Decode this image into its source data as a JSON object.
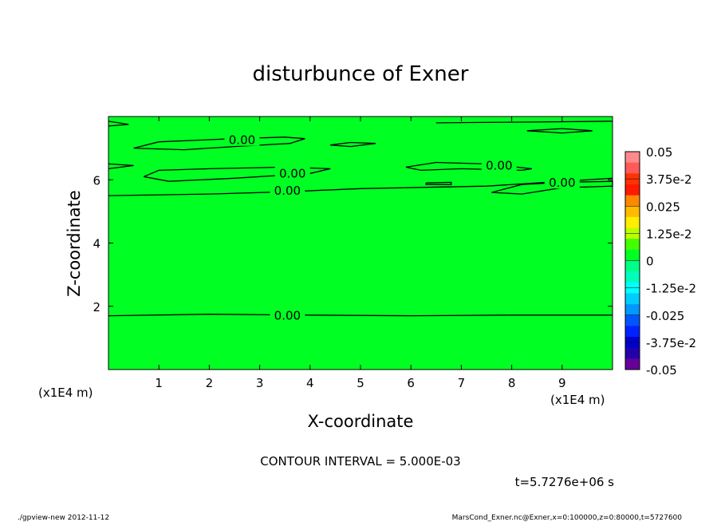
{
  "chart_data": {
    "type": "contour",
    "title": "disturbunce of Exner",
    "xlabel": "X-coordinate",
    "ylabel": "Z-coordinate",
    "x_units": "(x1E4 m)",
    "y_units": "(x1E4 m)",
    "xlim": [
      0,
      10
    ],
    "ylim": [
      0,
      8
    ],
    "x_ticks": [
      {
        "value": 1,
        "label": "1"
      },
      {
        "value": 2,
        "label": "2"
      },
      {
        "value": 3,
        "label": "3"
      },
      {
        "value": 4,
        "label": "4"
      },
      {
        "value": 5,
        "label": "5"
      },
      {
        "value": 6,
        "label": "6"
      },
      {
        "value": 7,
        "label": "7"
      },
      {
        "value": 8,
        "label": "8"
      },
      {
        "value": 9,
        "label": "9"
      }
    ],
    "y_ticks": [
      {
        "value": 2,
        "label": "2"
      },
      {
        "value": 4,
        "label": "4"
      },
      {
        "value": 6,
        "label": "6"
      }
    ],
    "fill_color": "#00ff22",
    "contour_color": "#000000",
    "contour_lines": [
      {
        "label": "0.00",
        "label_at": [
          3.55,
          1.7
        ],
        "points": [
          [
            0,
            1.7
          ],
          [
            2,
            1.75
          ],
          [
            4,
            1.72
          ],
          [
            6,
            1.7
          ],
          [
            8,
            1.72
          ],
          [
            10,
            1.72
          ]
        ]
      },
      {
        "label": "0.00",
        "label_at": [
          3.55,
          5.65
        ],
        "points": [
          [
            0,
            5.5
          ],
          [
            2,
            5.55
          ],
          [
            3.5,
            5.62
          ],
          [
            5,
            5.72
          ],
          [
            7.5,
            5.8
          ],
          [
            9,
            5.95
          ],
          [
            10,
            6.05
          ]
        ]
      },
      {
        "label": "0.00",
        "label_at": [
          3.65,
          6.2
        ],
        "points": [
          [
            0.7,
            6.1
          ],
          [
            1.2,
            5.95
          ],
          [
            2.5,
            6.05
          ],
          [
            4,
            6.2
          ],
          [
            4.4,
            6.35
          ],
          [
            3.5,
            6.4
          ],
          [
            2,
            6.35
          ],
          [
            1,
            6.3
          ],
          [
            0.7,
            6.1
          ]
        ]
      },
      {
        "label": "0.00",
        "label_at": [
          2.65,
          7.25
        ],
        "points": [
          [
            0.5,
            7.0
          ],
          [
            1,
            7.2
          ],
          [
            2.5,
            7.3
          ],
          [
            3.5,
            7.35
          ],
          [
            3.9,
            7.3
          ],
          [
            3.6,
            7.15
          ],
          [
            2.5,
            7.05
          ],
          [
            1.5,
            6.95
          ],
          [
            0.5,
            7.0
          ]
        ]
      },
      {
        "label": "0.00",
        "label_at": [
          7.75,
          6.45
        ],
        "points": [
          [
            5.9,
            6.4
          ],
          [
            6.5,
            6.55
          ],
          [
            7.5,
            6.5
          ],
          [
            8.4,
            6.35
          ],
          [
            8.2,
            6.3
          ],
          [
            7,
            6.35
          ],
          [
            6.2,
            6.3
          ],
          [
            5.9,
            6.4
          ]
        ]
      },
      {
        "label": "0.00",
        "label_at": [
          9.0,
          5.9
        ],
        "points": [
          [
            7.6,
            5.6
          ],
          [
            8.2,
            5.85
          ],
          [
            9,
            5.92
          ],
          [
            10,
            5.95
          ],
          [
            10,
            5.8
          ],
          [
            9,
            5.75
          ],
          [
            8.2,
            5.55
          ],
          [
            7.6,
            5.6
          ]
        ]
      },
      {
        "label": "",
        "label_at": null,
        "points": [
          [
            4.4,
            7.1
          ],
          [
            4.8,
            7.18
          ],
          [
            5.3,
            7.15
          ],
          [
            4.8,
            7.05
          ],
          [
            4.4,
            7.1
          ]
        ]
      },
      {
        "label": "",
        "label_at": null,
        "points": [
          [
            6.3,
            5.9
          ],
          [
            6.8,
            5.92
          ],
          [
            6.8,
            5.85
          ],
          [
            6.3,
            5.85
          ],
          [
            6.3,
            5.9
          ]
        ]
      },
      {
        "label": "",
        "label_at": null,
        "points": [
          [
            0,
            6.5
          ],
          [
            0.5,
            6.45
          ],
          [
            0,
            6.35
          ]
        ]
      },
      {
        "label": "",
        "label_at": null,
        "points": [
          [
            0,
            7.7
          ],
          [
            0.4,
            7.75
          ],
          [
            0,
            7.85
          ]
        ]
      },
      {
        "label": "",
        "label_at": null,
        "points": [
          [
            6.5,
            7.8
          ],
          [
            8,
            7.82
          ],
          [
            10,
            7.85
          ]
        ]
      },
      {
        "label": "",
        "label_at": null,
        "points": [
          [
            8.3,
            7.55
          ],
          [
            9,
            7.62
          ],
          [
            9.6,
            7.55
          ],
          [
            9,
            7.48
          ],
          [
            8.3,
            7.55
          ]
        ]
      }
    ],
    "colorbar": {
      "levels": [
        "0.05",
        "3.75e-2",
        "0.025",
        "1.25e-2",
        "0",
        "-1.25e-2",
        "-0.025",
        "-3.75e-2",
        "-0.05"
      ],
      "colors": [
        "#ff8a8a",
        "#ff5a5a",
        "#ff3300",
        "#ff1a00",
        "#ff8800",
        "#ffbb00",
        "#ffee00",
        "#bbff00",
        "#44ff00",
        "#00ff22",
        "#00ff88",
        "#00ffbb",
        "#00ffff",
        "#00ccff",
        "#0099ff",
        "#0055ff",
        "#0022ff",
        "#0000cc",
        "#2200aa",
        "#660099"
      ]
    },
    "contour_interval_text": "CONTOUR INTERVAL = 5.000E-03",
    "time_text": "t=5.7276e+06 s"
  },
  "footer": {
    "left": "./gpview-new   2012-11-12",
    "right": "MarsCond_Exner.nc@Exner,x=0:100000,z=0:80000,t=5727600"
  }
}
